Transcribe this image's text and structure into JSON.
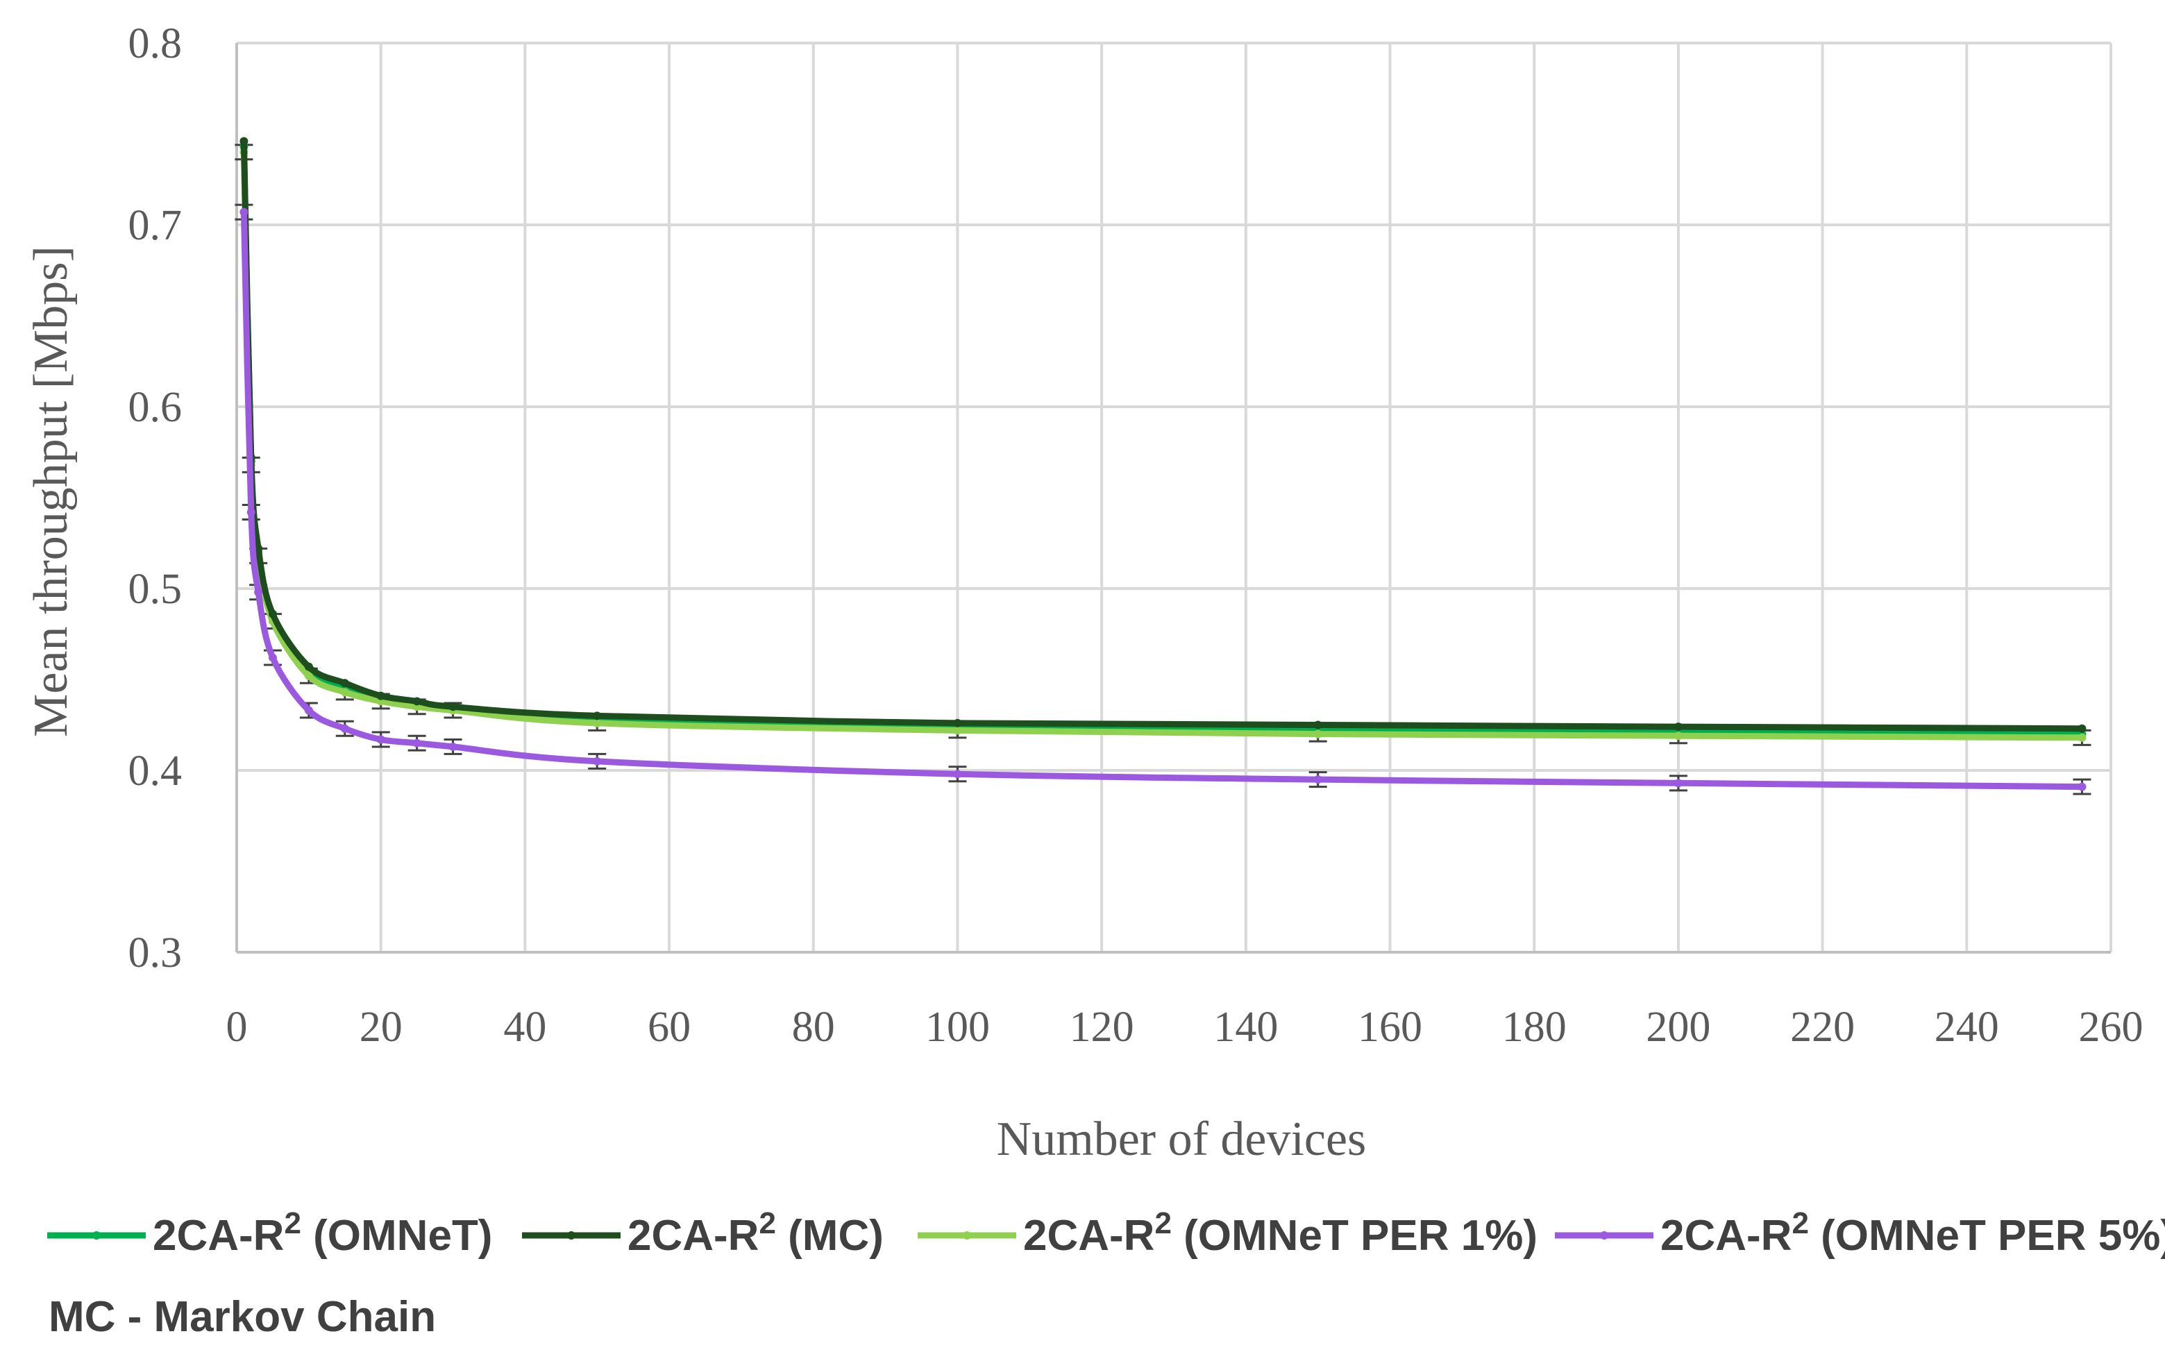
{
  "chart_data": {
    "type": "line",
    "xlabel": "Number of devices",
    "ylabel": "Mean throughput [Mbps]",
    "xlim": [
      0,
      260
    ],
    "ylim": [
      0.3,
      0.8
    ],
    "x_ticks": [
      0,
      20,
      40,
      60,
      80,
      100,
      120,
      140,
      160,
      180,
      200,
      220,
      240,
      260
    ],
    "y_ticks": [
      0.3,
      0.4,
      0.5,
      0.6,
      0.7,
      0.8
    ],
    "grid": true,
    "legend_position": "bottom",
    "x": [
      1,
      2,
      3,
      5,
      10,
      15,
      20,
      25,
      30,
      50,
      100,
      150,
      200,
      256
    ],
    "series": [
      {
        "name": "2CA-R² (OMNeT)",
        "legend_base": "2CA-R",
        "legend_sup": "2",
        "legend_tail": " (OMNeT)",
        "color": "#00b050",
        "values": [
          0.743,
          0.57,
          0.52,
          0.484,
          0.455,
          0.446,
          0.44,
          0.437,
          0.434,
          0.428,
          0.424,
          0.422,
          0.421,
          0.42
        ],
        "error_bars": false
      },
      {
        "name": "2CA-R² (MC)",
        "legend_base": "2CA-R",
        "legend_sup": "2",
        "legend_tail": " (MC)",
        "color": "#1e4d1e",
        "values": [
          0.746,
          0.572,
          0.522,
          0.486,
          0.457,
          0.448,
          0.441,
          0.438,
          0.435,
          0.43,
          0.426,
          0.425,
          0.424,
          0.423
        ],
        "error_bars": false
      },
      {
        "name": "2CA-R² (OMNeT PER 1%)",
        "legend_base": "2CA-R",
        "legend_sup": "2",
        "legend_tail": " (OMNeT PER 1%)",
        "color": "#8fd14f",
        "values": [
          0.74,
          0.568,
          0.518,
          0.482,
          0.452,
          0.443,
          0.438,
          0.435,
          0.433,
          0.426,
          0.422,
          0.42,
          0.419,
          0.418
        ],
        "error_bars": true,
        "error": 0.004
      },
      {
        "name": "2CA-R² (OMNeT PER 5%)",
        "legend_base": "2CA-R",
        "legend_sup": "2",
        "legend_tail": " (OMNeT PER 5%)",
        "color": "#9b59e0",
        "values": [
          0.707,
          0.542,
          0.498,
          0.462,
          0.433,
          0.423,
          0.417,
          0.415,
          0.413,
          0.405,
          0.398,
          0.395,
          0.393,
          0.391
        ],
        "error_bars": true,
        "error": 0.004
      }
    ],
    "note": "MC - Markov Chain"
  }
}
